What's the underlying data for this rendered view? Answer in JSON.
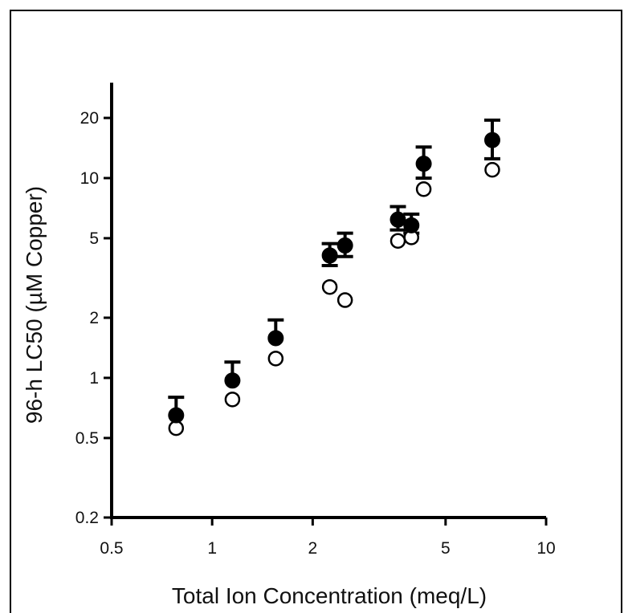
{
  "chart_data": {
    "type": "scatter",
    "title": "",
    "xlabel": "Total Ion Concentration (meq/L)",
    "ylabel": "96-h LC50 (µM Copper)",
    "xscale": "log",
    "yscale": "log",
    "xlim": [
      0.5,
      10
    ],
    "ylim": [
      0.2,
      30
    ],
    "xticks": [
      0.5,
      1,
      2,
      5,
      10
    ],
    "xtick_labels": [
      "0.5",
      "1",
      "2",
      "5",
      "10"
    ],
    "yticks": [
      0.2,
      0.5,
      1,
      2,
      5,
      10,
      20
    ],
    "ytick_labels": [
      "0.2",
      "0.5",
      "1",
      "2",
      "5",
      "10",
      "20"
    ],
    "grid": false,
    "legend": "none",
    "series": [
      {
        "marker": "filled-circle",
        "color": "#000000",
        "x": [
          0.78,
          1.15,
          1.55,
          2.25,
          2.5,
          3.6,
          3.95,
          4.3,
          6.9
        ],
        "y": [
          0.65,
          0.97,
          1.58,
          4.1,
          4.6,
          6.2,
          5.8,
          11.8,
          15.5
        ],
        "error_upper": [
          0.8,
          1.2,
          1.95,
          4.7,
          5.3,
          7.2,
          6.6,
          14.3,
          19.5
        ],
        "error_lower": [
          0.65,
          0.97,
          1.58,
          3.65,
          4.05,
          5.5,
          5.3,
          10.0,
          12.5
        ]
      },
      {
        "marker": "open-circle",
        "color": "#000000",
        "x": [
          0.78,
          1.15,
          1.55,
          2.25,
          2.5,
          3.6,
          3.95,
          4.3,
          6.9
        ],
        "y": [
          0.56,
          0.78,
          1.25,
          2.85,
          2.45,
          4.85,
          5.05,
          8.8,
          11.0
        ]
      }
    ]
  }
}
